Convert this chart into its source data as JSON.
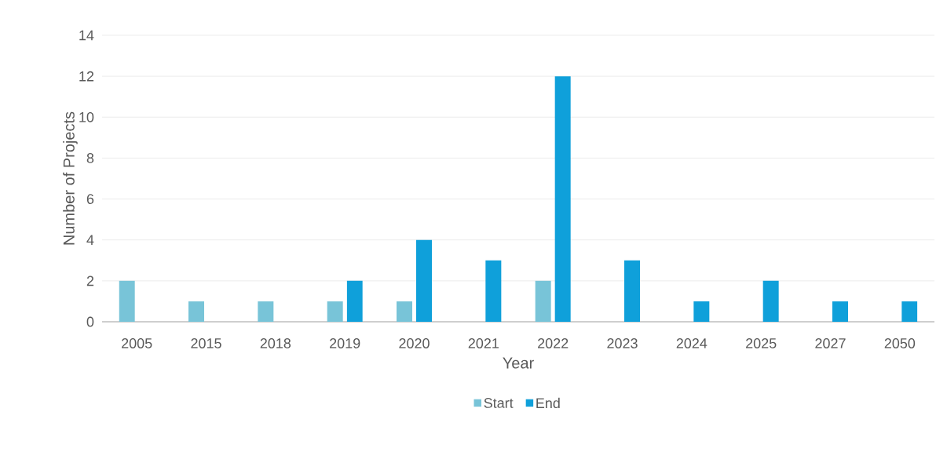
{
  "chart_data": {
    "type": "bar",
    "xlabel": "Year",
    "ylabel": "Number of Projects",
    "categories": [
      "2005",
      "2015",
      "2018",
      "2019",
      "2020",
      "2021",
      "2022",
      "2023",
      "2024",
      "2025",
      "2027",
      "2050"
    ],
    "series": [
      {
        "name": "Start",
        "color": "#78c4d8",
        "values": [
          2,
          1,
          1,
          1,
          1,
          null,
          2,
          null,
          null,
          null,
          null,
          null
        ]
      },
      {
        "name": "End",
        "color": "#0fa0da",
        "values": [
          null,
          null,
          null,
          2,
          4,
          3,
          12,
          3,
          1,
          2,
          1,
          1
        ]
      }
    ],
    "ylim": [
      0,
      14
    ],
    "yticks": [
      0,
      2,
      4,
      6,
      8,
      10,
      12,
      14
    ],
    "grid": "y",
    "legend": "bottom"
  }
}
